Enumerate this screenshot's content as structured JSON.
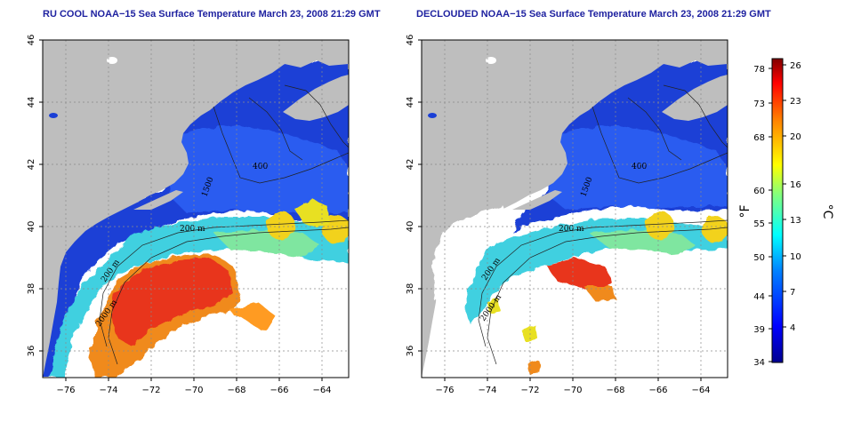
{
  "panels": [
    {
      "title": "RU COOL NOAA−15 Sea Surface Temperature March 23, 2008 21:29 GMT",
      "contour_labels": [
        "400",
        "1500",
        "200 m",
        "2000 m",
        "200 m"
      ]
    },
    {
      "title": "DECLOUDED NOAA−15 Sea Surface Temperature March 23, 2008 21:29 GMT",
      "contour_labels": [
        "400",
        "1500",
        "200 m",
        "2000 m",
        "200 m"
      ]
    }
  ],
  "axes": {
    "lat_ticks": [
      "46",
      "44",
      "42",
      "40",
      "38",
      "36"
    ],
    "lon_ticks": [
      "−76",
      "−74",
      "−72",
      "−70",
      "−68",
      "−66",
      "−64"
    ]
  },
  "colorbar": {
    "unit_left": "°F",
    "unit_right": "°C",
    "f_ticks": [
      "78",
      "73",
      "68",
      "60",
      "55",
      "50",
      "44",
      "39",
      "34"
    ],
    "c_ticks": [
      "26",
      "23",
      "20",
      "16",
      "13",
      "10",
      "7",
      "4"
    ],
    "colors": [
      "#00008f",
      "#0000ff",
      "#0080ff",
      "#00ffff",
      "#80ff80",
      "#ffff00",
      "#ff8000",
      "#ff0000",
      "#800000"
    ]
  },
  "colors": {
    "land": "#bebebe",
    "cloud": "#ffffff",
    "cold": "#1a3fd6",
    "warm": "#e83a1a",
    "title": "#1f22a0"
  }
}
